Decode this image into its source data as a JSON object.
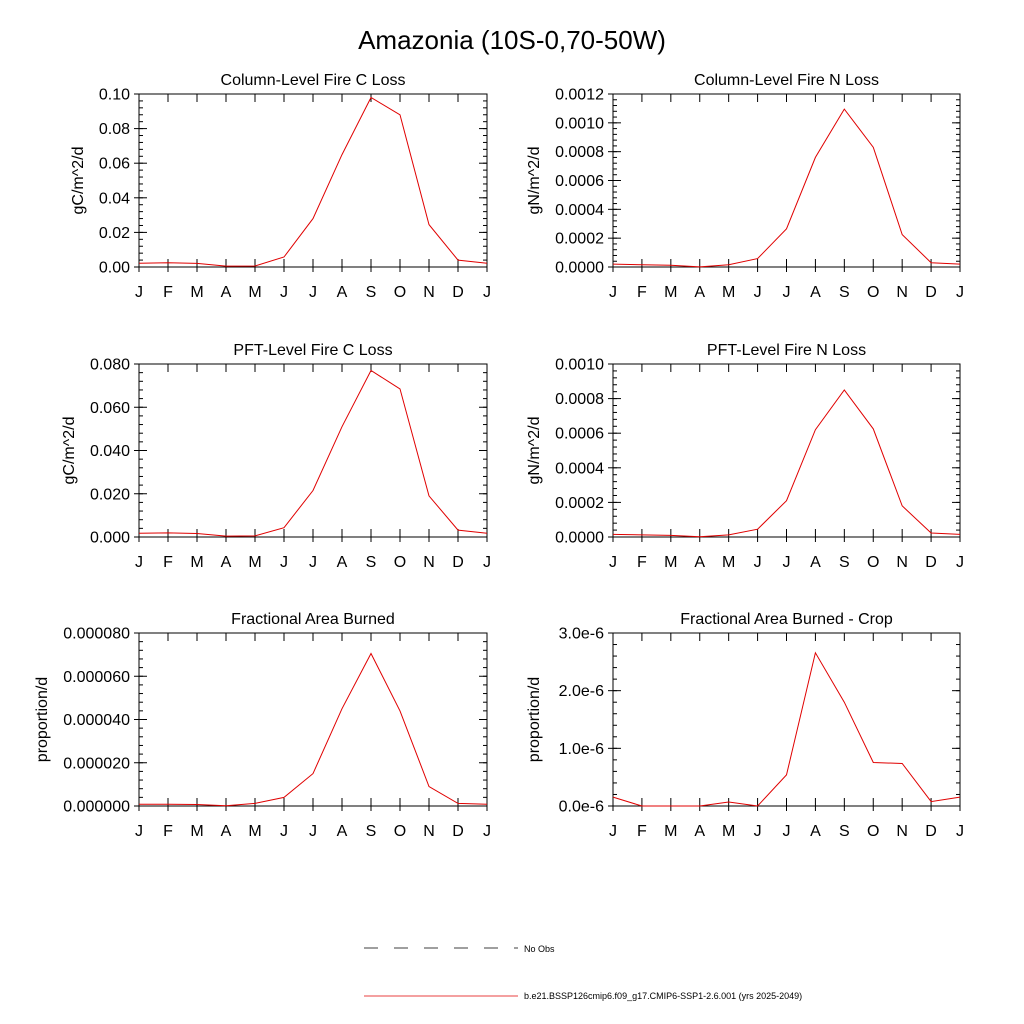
{
  "title": "Amazonia (10S-0,70-50W)",
  "chart_data": [
    {
      "type": "line",
      "title": "Column-Level Fire C Loss",
      "ylabel": "gC/m^2/d",
      "xticks": [
        "J",
        "F",
        "M",
        "A",
        "M",
        "J",
        "J",
        "A",
        "S",
        "O",
        "N",
        "D",
        "J"
      ],
      "yticks": [
        "0.00",
        "0.02",
        "0.04",
        "0.06",
        "0.08",
        "0.10"
      ],
      "ylim": [
        0,
        0.1
      ],
      "series": [
        {
          "color": "#e00000",
          "values": [
            0.0022,
            0.0025,
            0.0021,
            0.0005,
            0.0006,
            0.0058,
            0.028,
            0.065,
            0.098,
            0.088,
            0.0245,
            0.004,
            0.0022
          ]
        }
      ]
    },
    {
      "type": "line",
      "title": "Column-Level Fire N Loss",
      "ylabel": "gN/m^2/d",
      "xticks": [
        "J",
        "F",
        "M",
        "A",
        "M",
        "J",
        "J",
        "A",
        "S",
        "O",
        "N",
        "D",
        "J"
      ],
      "yticks": [
        "0.0000",
        "0.0002",
        "0.0004",
        "0.0006",
        "0.0008",
        "0.0010",
        "0.0012"
      ],
      "ylim": [
        0,
        0.0012
      ],
      "series": [
        {
          "color": "#e00000",
          "values": [
            2e-05,
            1.5e-05,
            1.2e-05,
            1e-06,
            1.5e-05,
            5.8e-05,
            0.000265,
            0.00076,
            0.001095,
            0.00083,
            0.000225,
            3e-05,
            2e-05
          ]
        }
      ]
    },
    {
      "type": "line",
      "title": "PFT-Level Fire C Loss",
      "ylabel": "gC/m^2/d",
      "xticks": [
        "J",
        "F",
        "M",
        "A",
        "M",
        "J",
        "J",
        "A",
        "S",
        "O",
        "N",
        "D",
        "J"
      ],
      "yticks": [
        "0.000",
        "0.020",
        "0.040",
        "0.060",
        "0.080"
      ],
      "ylim": [
        0,
        0.08
      ],
      "series": [
        {
          "color": "#e00000",
          "values": [
            0.0017,
            0.0019,
            0.0016,
            0.0004,
            0.0005,
            0.0043,
            0.0215,
            0.051,
            0.077,
            0.0685,
            0.019,
            0.0032,
            0.0017
          ]
        }
      ]
    },
    {
      "type": "line",
      "title": "PFT-Level Fire N Loss",
      "ylabel": "gN/m^2/d",
      "xticks": [
        "J",
        "F",
        "M",
        "A",
        "M",
        "J",
        "J",
        "A",
        "S",
        "O",
        "N",
        "D",
        "J"
      ],
      "yticks": [
        "0.0000",
        "0.0002",
        "0.0004",
        "0.0006",
        "0.0008",
        "0.0010"
      ],
      "ylim": [
        0,
        0.001
      ],
      "series": [
        {
          "color": "#e00000",
          "values": [
            1.5e-05,
            1.2e-05,
            9e-06,
            1e-06,
            1.2e-05,
            4.5e-05,
            0.00021,
            0.00062,
            0.00085,
            0.000625,
            0.00018,
            2.3e-05,
            1.5e-05
          ]
        }
      ]
    },
    {
      "type": "line",
      "title": "Fractional Area Burned",
      "ylabel": "proportion/d",
      "xticks": [
        "J",
        "F",
        "M",
        "A",
        "M",
        "J",
        "J",
        "A",
        "S",
        "O",
        "N",
        "D",
        "J"
      ],
      "yticks": [
        "0.000000",
        "0.000020",
        "0.000040",
        "0.000060",
        "0.000080"
      ],
      "ylim": [
        0,
        8e-05
      ],
      "series": [
        {
          "color": "#e00000",
          "values": [
            8e-07,
            8e-07,
            7e-07,
            1e-07,
            1.2e-06,
            4e-06,
            1.5e-05,
            4.5e-05,
            7.05e-05,
            4.4e-05,
            9e-06,
            1.2e-06,
            8e-07
          ]
        }
      ]
    },
    {
      "type": "line",
      "title": "Fractional Area Burned - Crop",
      "ylabel": "proportion/d",
      "xticks": [
        "J",
        "F",
        "M",
        "A",
        "M",
        "J",
        "J",
        "A",
        "S",
        "O",
        "N",
        "D",
        "J"
      ],
      "yticks": [
        "0.0e-6",
        "1.0e-6",
        "2.0e-6",
        "3.0e-6"
      ],
      "ylim": [
        0,
        3.5e-06
      ],
      "series": [
        {
          "color": "#e00000",
          "values": [
            1.8e-07,
            0.0,
            0.0,
            0.0,
            8e-08,
            0.0,
            6.3e-07,
            3.1e-06,
            2.1e-06,
            8.8e-07,
            8.6e-07,
            9e-08,
            1.8e-07
          ]
        }
      ]
    }
  ],
  "legend": [
    {
      "label": "No Obs",
      "style": "dashed",
      "color": "#000000"
    },
    {
      "label": "b.e21.BSSP126cmip6.f09_g17.CMIP6-SSP1-2.6.001 (yrs 2025-2049)",
      "style": "solid",
      "color": "#e00000"
    }
  ]
}
